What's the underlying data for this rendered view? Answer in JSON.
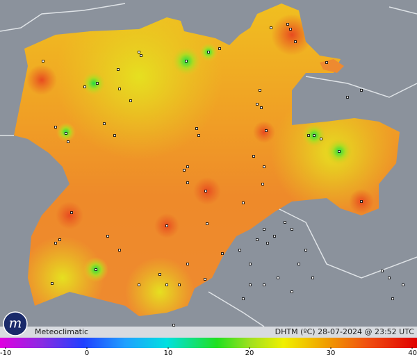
{
  "footer": {
    "brand": "Meteoclimatic",
    "caption": "DHTM (ºC)  28-07-2024 @ 23:52 UTC"
  },
  "legend": {
    "ticks": [
      -10,
      0,
      10,
      20,
      30,
      40
    ]
  }
}
